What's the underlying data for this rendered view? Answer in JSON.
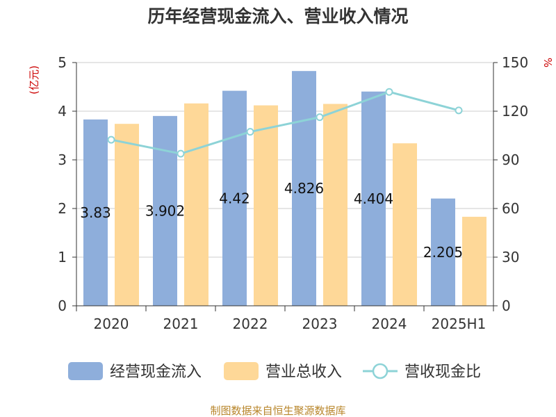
{
  "chart_data": {
    "type": "bar",
    "title": "历年经营现金流入、营业收入情况",
    "categories": [
      "2020",
      "2021",
      "2022",
      "2023",
      "2024",
      "2025H1"
    ],
    "y_left": {
      "unit": "(亿元)",
      "ylim": [
        0,
        5
      ],
      "ticks": [
        "0",
        "1",
        "2",
        "3",
        "4",
        "5"
      ]
    },
    "y_right": {
      "unit": "%",
      "ylim": [
        0,
        150
      ],
      "ticks": [
        "0",
        "30",
        "60",
        "90",
        "120",
        "150"
      ]
    },
    "series": [
      {
        "name": "经营现金流入",
        "kind": "bar",
        "axis": "left",
        "color": "#8eaedb",
        "values": [
          3.83,
          3.902,
          4.42,
          4.826,
          4.404,
          2.205
        ],
        "labels": [
          "3.83",
          "3.902",
          "4.42",
          "4.826",
          "4.404",
          "2.205"
        ]
      },
      {
        "name": "营业总收入",
        "kind": "bar",
        "axis": "left",
        "color": "#fed898",
        "values": [
          3.74,
          4.16,
          4.12,
          4.15,
          3.34,
          1.83
        ]
      },
      {
        "name": "营收现金比",
        "kind": "line",
        "axis": "right",
        "color": "#8dd3d7",
        "values": [
          102.4,
          93.8,
          107.3,
          116.3,
          131.9,
          120.5
        ]
      }
    ],
    "grid": true,
    "legend": "bottom"
  },
  "source": "制图数据来自恒生聚源数据库"
}
